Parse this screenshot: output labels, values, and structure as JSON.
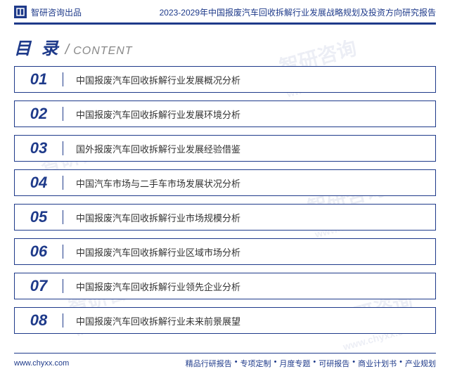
{
  "header": {
    "brand": "智研咨询出品",
    "title": "2023-2029年中国报废汽车回收拆解行业发展战略规划及投资方向研究报告"
  },
  "contentTitle": {
    "cn": "目 录",
    "en": "CONTENT"
  },
  "toc": [
    {
      "num": "01",
      "text": "中国报废汽车回收拆解行业发展概况分析"
    },
    {
      "num": "02",
      "text": "中国报废汽车回收拆解行业发展环境分析"
    },
    {
      "num": "03",
      "text": "国外报废汽车回收拆解行业发展经验借鉴"
    },
    {
      "num": "04",
      "text": "中国汽车市场与二手车市场发展状况分析"
    },
    {
      "num": "05",
      "text": "中国报废汽车回收拆解行业市场规模分析"
    },
    {
      "num": "06",
      "text": "中国报废汽车回收拆解行业区域市场分析"
    },
    {
      "num": "07",
      "text": "中国报废汽车回收拆解行业领先企业分析"
    },
    {
      "num": "08",
      "text": "中国报废汽车回收拆解行业未来前景展望"
    }
  ],
  "footer": {
    "url": "www.chyxx.com",
    "links": [
      "精品行研报告",
      "专项定制",
      "月度专题",
      "可研报告",
      "商业计划书",
      "产业规划"
    ]
  },
  "watermark": {
    "text": "智研咨询",
    "sub": "www.chyxx.com"
  },
  "colors": {
    "primary": "#1e3a8a",
    "text": "#333333",
    "gray": "#888888",
    "background": "#ffffff"
  }
}
